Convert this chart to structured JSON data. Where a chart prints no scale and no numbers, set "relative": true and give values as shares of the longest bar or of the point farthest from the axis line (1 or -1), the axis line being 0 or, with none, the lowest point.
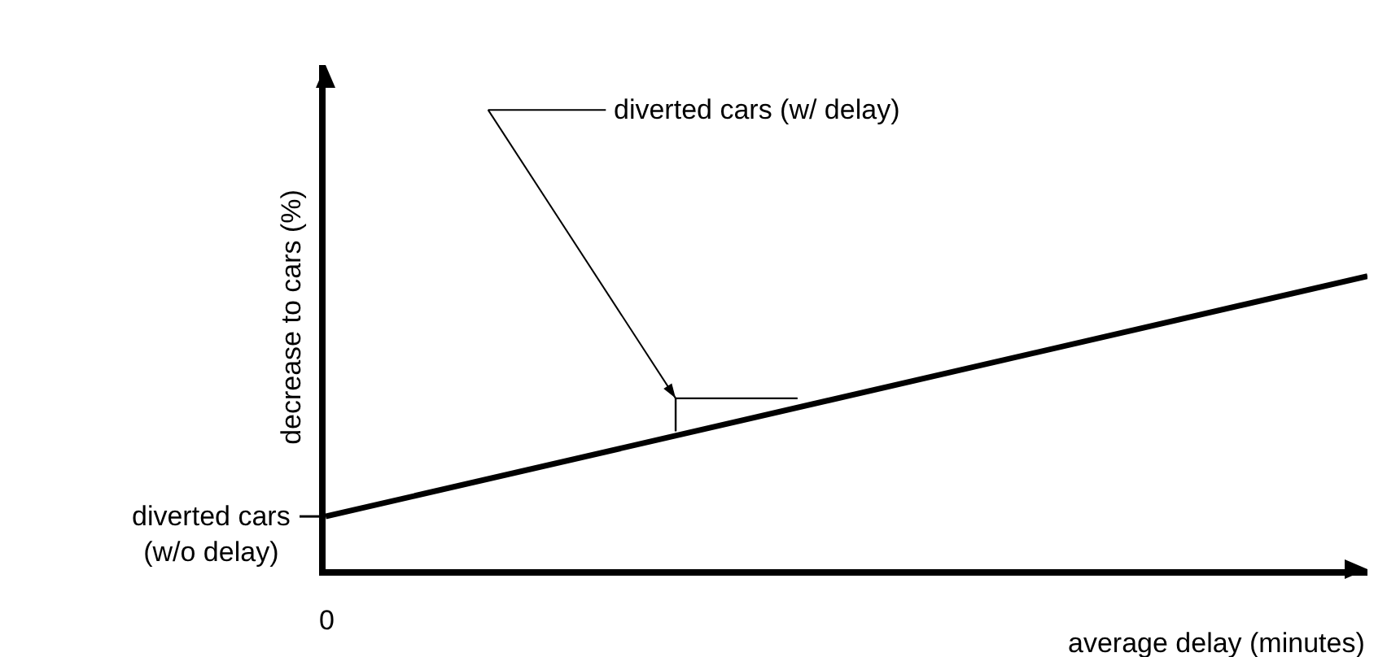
{
  "chart_data": {
    "type": "line",
    "relative": true,
    "xlabel": "average delay (minutes)",
    "ylabel": "decrease to cars (%)",
    "categories": [
      null,
      null
    ],
    "series": [
      {
        "color": "#000000",
        "values": [
          0.18,
          1
        ]
      }
    ],
    "annotations": [
      "diverted cars (w/ delay)",
      "0",
      "diverted cars\n(w/o delay)"
    ],
    "grid": false,
    "marker": "none",
    "line_style": "solid"
  }
}
